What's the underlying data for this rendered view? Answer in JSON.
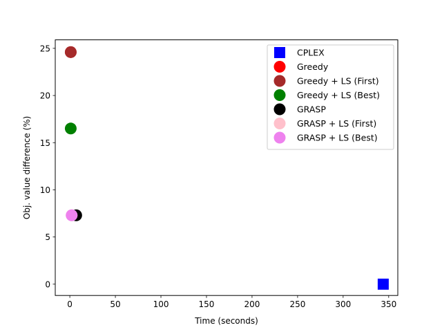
{
  "chart_data": {
    "type": "scatter",
    "title": "",
    "xlabel": "Time (seconds)",
    "ylabel": "Obj. value difference (%)",
    "xlim": [
      -16,
      360
    ],
    "ylim": [
      -1.2,
      25.9
    ],
    "xticks": [
      0,
      50,
      100,
      150,
      200,
      250,
      300,
      350
    ],
    "yticks": [
      0,
      5,
      10,
      15,
      20,
      25
    ],
    "grid": false,
    "legend_position": "top-right",
    "series": [
      {
        "name": "CPLEX",
        "marker": "square",
        "color": "#0000ff",
        "points": [
          {
            "x": 344,
            "y": 0
          }
        ]
      },
      {
        "name": "Greedy",
        "marker": "circle",
        "color": "#ff0000",
        "points": [
          {
            "x": 1,
            "y": 24.6
          }
        ]
      },
      {
        "name": "Greedy + LS (First)",
        "marker": "circle",
        "color": "#a52a2a",
        "points": [
          {
            "x": 1,
            "y": 24.6
          }
        ]
      },
      {
        "name": "Greedy + LS (Best)",
        "marker": "circle",
        "color": "#008000",
        "points": [
          {
            "x": 1,
            "y": 16.5
          }
        ]
      },
      {
        "name": "GRASP",
        "marker": "circle",
        "color": "#000000",
        "points": [
          {
            "x": 7,
            "y": 7.3
          }
        ]
      },
      {
        "name": "GRASP + LS (First)",
        "marker": "circle",
        "color": "#ffc0cb",
        "points": [
          {
            "x": 2,
            "y": 7.3
          }
        ]
      },
      {
        "name": "GRASP + LS (Best)",
        "marker": "circle",
        "color": "#ee82ee",
        "points": [
          {
            "x": 2,
            "y": 7.3
          }
        ]
      }
    ]
  }
}
